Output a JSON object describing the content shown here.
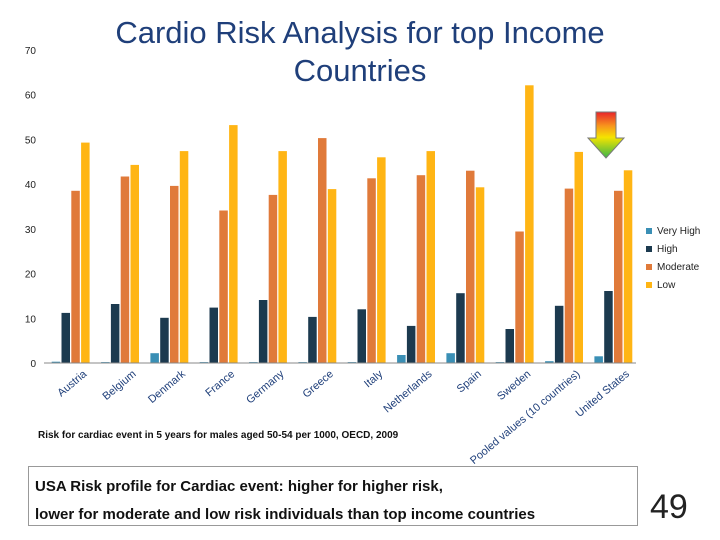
{
  "slide": {
    "footnote": "Risk for cardiac event in 5 years for males aged 50-54 per 1000, OECD, 2009",
    "text_line1": "USA Risk profile for Cardiac event: higher for higher risk,",
    "text_line2": "lower for moderate and low risk individuals than top income countries",
    "slide_number": "49",
    "arrow_icon": "gradient-down-arrow-icon"
  },
  "chart_data": {
    "type": "bar",
    "title": "Cardio Risk Analysis for top Income Countries",
    "categories": [
      "Austria",
      "Belgium",
      "Denmark",
      "France",
      "Germany",
      "Greece",
      "Italy",
      "Netherlands",
      "Spain",
      "Sweden",
      "Pooled values (10 countries)",
      "United States"
    ],
    "series": [
      {
        "name": "Very High",
        "color": "#3a8fb5",
        "values": [
          0.3,
          0.2,
          2.2,
          0.2,
          0.2,
          0.2,
          0.2,
          1.8,
          2.2,
          0.2,
          0.4,
          1.5
        ]
      },
      {
        "name": "High",
        "color": "#1c3a4f",
        "values": [
          11.2,
          13.2,
          10.1,
          12.4,
          14.1,
          10.3,
          12.0,
          8.3,
          15.6,
          7.6,
          12.8,
          16.1
        ]
      },
      {
        "name": "Moderate",
        "color": "#e07a3a",
        "values": [
          38.5,
          41.7,
          39.6,
          34.1,
          37.6,
          50.3,
          41.3,
          42.0,
          43.0,
          29.4,
          39.0,
          38.5
        ]
      },
      {
        "name": "Low",
        "color": "#ffb514",
        "values": [
          49.3,
          44.3,
          47.4,
          53.2,
          47.4,
          38.9,
          46.0,
          47.4,
          39.3,
          62.1,
          47.2,
          43.1
        ]
      }
    ],
    "ylim": [
      0,
      70
    ],
    "yticks": [
      0,
      10,
      20,
      30,
      40,
      50,
      60,
      70
    ],
    "grid": false,
    "legend": "right"
  }
}
